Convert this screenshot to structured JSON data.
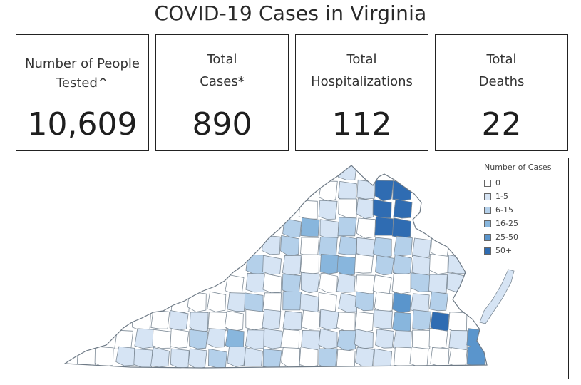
{
  "title": "COVID-19 Cases in Virginia",
  "kpis": [
    {
      "label_line1": "Number of People",
      "label_line2": "Tested^",
      "value": "10,609"
    },
    {
      "label_line1": "Total",
      "label_line2": "Cases*",
      "value": "890"
    },
    {
      "label_line1": "Total",
      "label_line2": "Hospitalizations",
      "value": "112"
    },
    {
      "label_line1": "Total",
      "label_line2": "Deaths",
      "value": "22"
    }
  ],
  "chart_data": {
    "type": "heatmap",
    "map_region": "Virginia counties",
    "legend_title": "Number of Cases",
    "legend": [
      {
        "label": "0",
        "color": "#ffffff"
      },
      {
        "label": "1-5",
        "color": "#d6e4f4"
      },
      {
        "label": "6-15",
        "color": "#b4d0ea"
      },
      {
        "label": "16-25",
        "color": "#88b6dd"
      },
      {
        "label": "25-50",
        "color": "#5a95cc"
      },
      {
        "label": "50+",
        "color": "#2f6cb2"
      }
    ]
  }
}
